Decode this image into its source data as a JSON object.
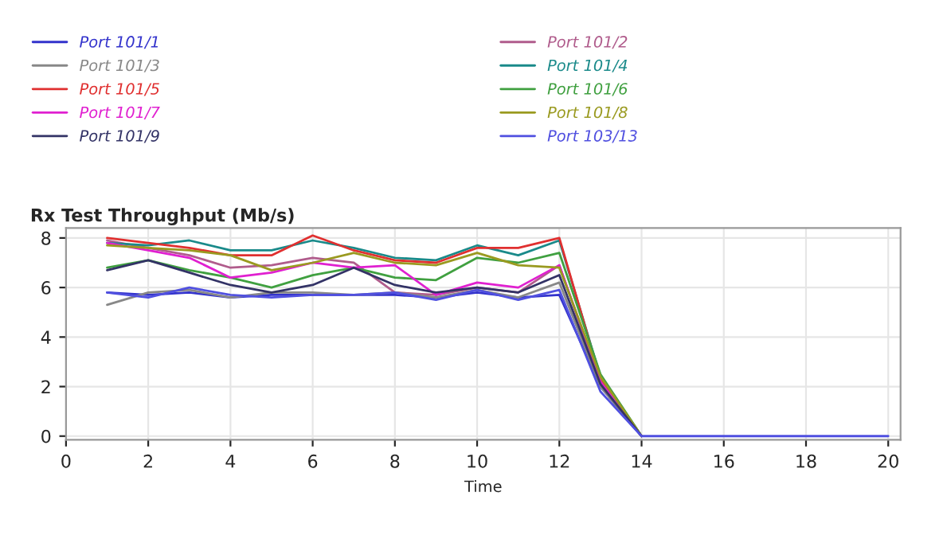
{
  "chart_data": {
    "type": "line",
    "title": "Rx Test Throughput (Mb/s)",
    "xlabel": "Time",
    "x": [
      1,
      2,
      3,
      4,
      5,
      6,
      7,
      8,
      9,
      10,
      11,
      12,
      13,
      14,
      15,
      16,
      17,
      18,
      19,
      20
    ],
    "series": [
      {
        "name": "Port 101/1",
        "color": "#3333cc",
        "values": [
          5.8,
          5.7,
          5.8,
          5.6,
          5.7,
          5.7,
          5.7,
          5.7,
          5.6,
          5.8,
          5.6,
          5.7,
          2.0,
          0,
          null,
          null,
          null,
          null,
          null,
          null
        ]
      },
      {
        "name": "Port 101/2",
        "color": "#b05c8c",
        "values": [
          7.9,
          7.6,
          7.3,
          6.8,
          6.9,
          7.2,
          7.0,
          5.8,
          5.7,
          6.0,
          5.8,
          6.9,
          2.2,
          0,
          null,
          null,
          null,
          null,
          null,
          null
        ]
      },
      {
        "name": "Port 101/3",
        "color": "#888888",
        "values": [
          5.3,
          5.8,
          5.9,
          5.6,
          5.8,
          5.8,
          5.7,
          5.8,
          5.6,
          5.9,
          5.6,
          6.2,
          2.0,
          0,
          null,
          null,
          null,
          null,
          null,
          null
        ]
      },
      {
        "name": "Port 101/4",
        "color": "#1a8a8a",
        "values": [
          7.8,
          7.7,
          7.9,
          7.5,
          7.5,
          7.9,
          7.6,
          7.2,
          7.1,
          7.7,
          7.3,
          7.9,
          2.4,
          0,
          null,
          null,
          null,
          null,
          null,
          null
        ]
      },
      {
        "name": "Port 101/5",
        "color": "#e03030",
        "values": [
          8.0,
          7.8,
          7.6,
          7.3,
          7.3,
          8.1,
          7.5,
          7.1,
          7.0,
          7.6,
          7.6,
          8.0,
          2.3,
          0,
          null,
          null,
          null,
          null,
          null,
          null
        ]
      },
      {
        "name": "Port 101/6",
        "color": "#40a040",
        "values": [
          6.8,
          7.1,
          6.7,
          6.4,
          6.0,
          6.5,
          6.8,
          6.4,
          6.3,
          7.2,
          7.0,
          7.4,
          2.5,
          0,
          null,
          null,
          null,
          null,
          null,
          null
        ]
      },
      {
        "name": "Port 101/7",
        "color": "#e020d0",
        "values": [
          7.8,
          7.5,
          7.2,
          6.4,
          6.6,
          7.0,
          6.8,
          6.9,
          5.7,
          6.2,
          6.0,
          6.9,
          2.2,
          0,
          null,
          null,
          null,
          null,
          null,
          null
        ]
      },
      {
        "name": "Port 101/8",
        "color": "#9a9a20",
        "values": [
          7.7,
          7.6,
          7.5,
          7.3,
          6.7,
          7.0,
          7.4,
          7.0,
          6.9,
          7.4,
          6.9,
          6.8,
          2.4,
          0,
          null,
          null,
          null,
          null,
          null,
          null
        ]
      },
      {
        "name": "Port 101/9",
        "color": "#333366",
        "values": [
          6.7,
          7.1,
          6.6,
          6.1,
          5.8,
          6.1,
          6.8,
          6.1,
          5.8,
          6.0,
          5.8,
          6.5,
          2.1,
          0,
          null,
          null,
          null,
          null,
          null,
          null
        ]
      },
      {
        "name": "Port 103/13",
        "color": "#5050e0",
        "values": [
          5.8,
          5.6,
          6.0,
          5.7,
          5.6,
          5.7,
          5.7,
          5.8,
          5.5,
          5.9,
          5.5,
          5.9,
          1.8,
          0,
          0,
          0,
          0,
          0,
          0,
          0
        ]
      }
    ],
    "xlim": [
      0,
      20.3
    ],
    "ylim": [
      -0.15,
      8.4
    ],
    "xticks": [
      0,
      2,
      4,
      6,
      8,
      10,
      12,
      14,
      16,
      18,
      20
    ],
    "yticks": [
      0,
      2,
      4,
      6,
      8
    ],
    "grid": true,
    "legend": "top"
  }
}
